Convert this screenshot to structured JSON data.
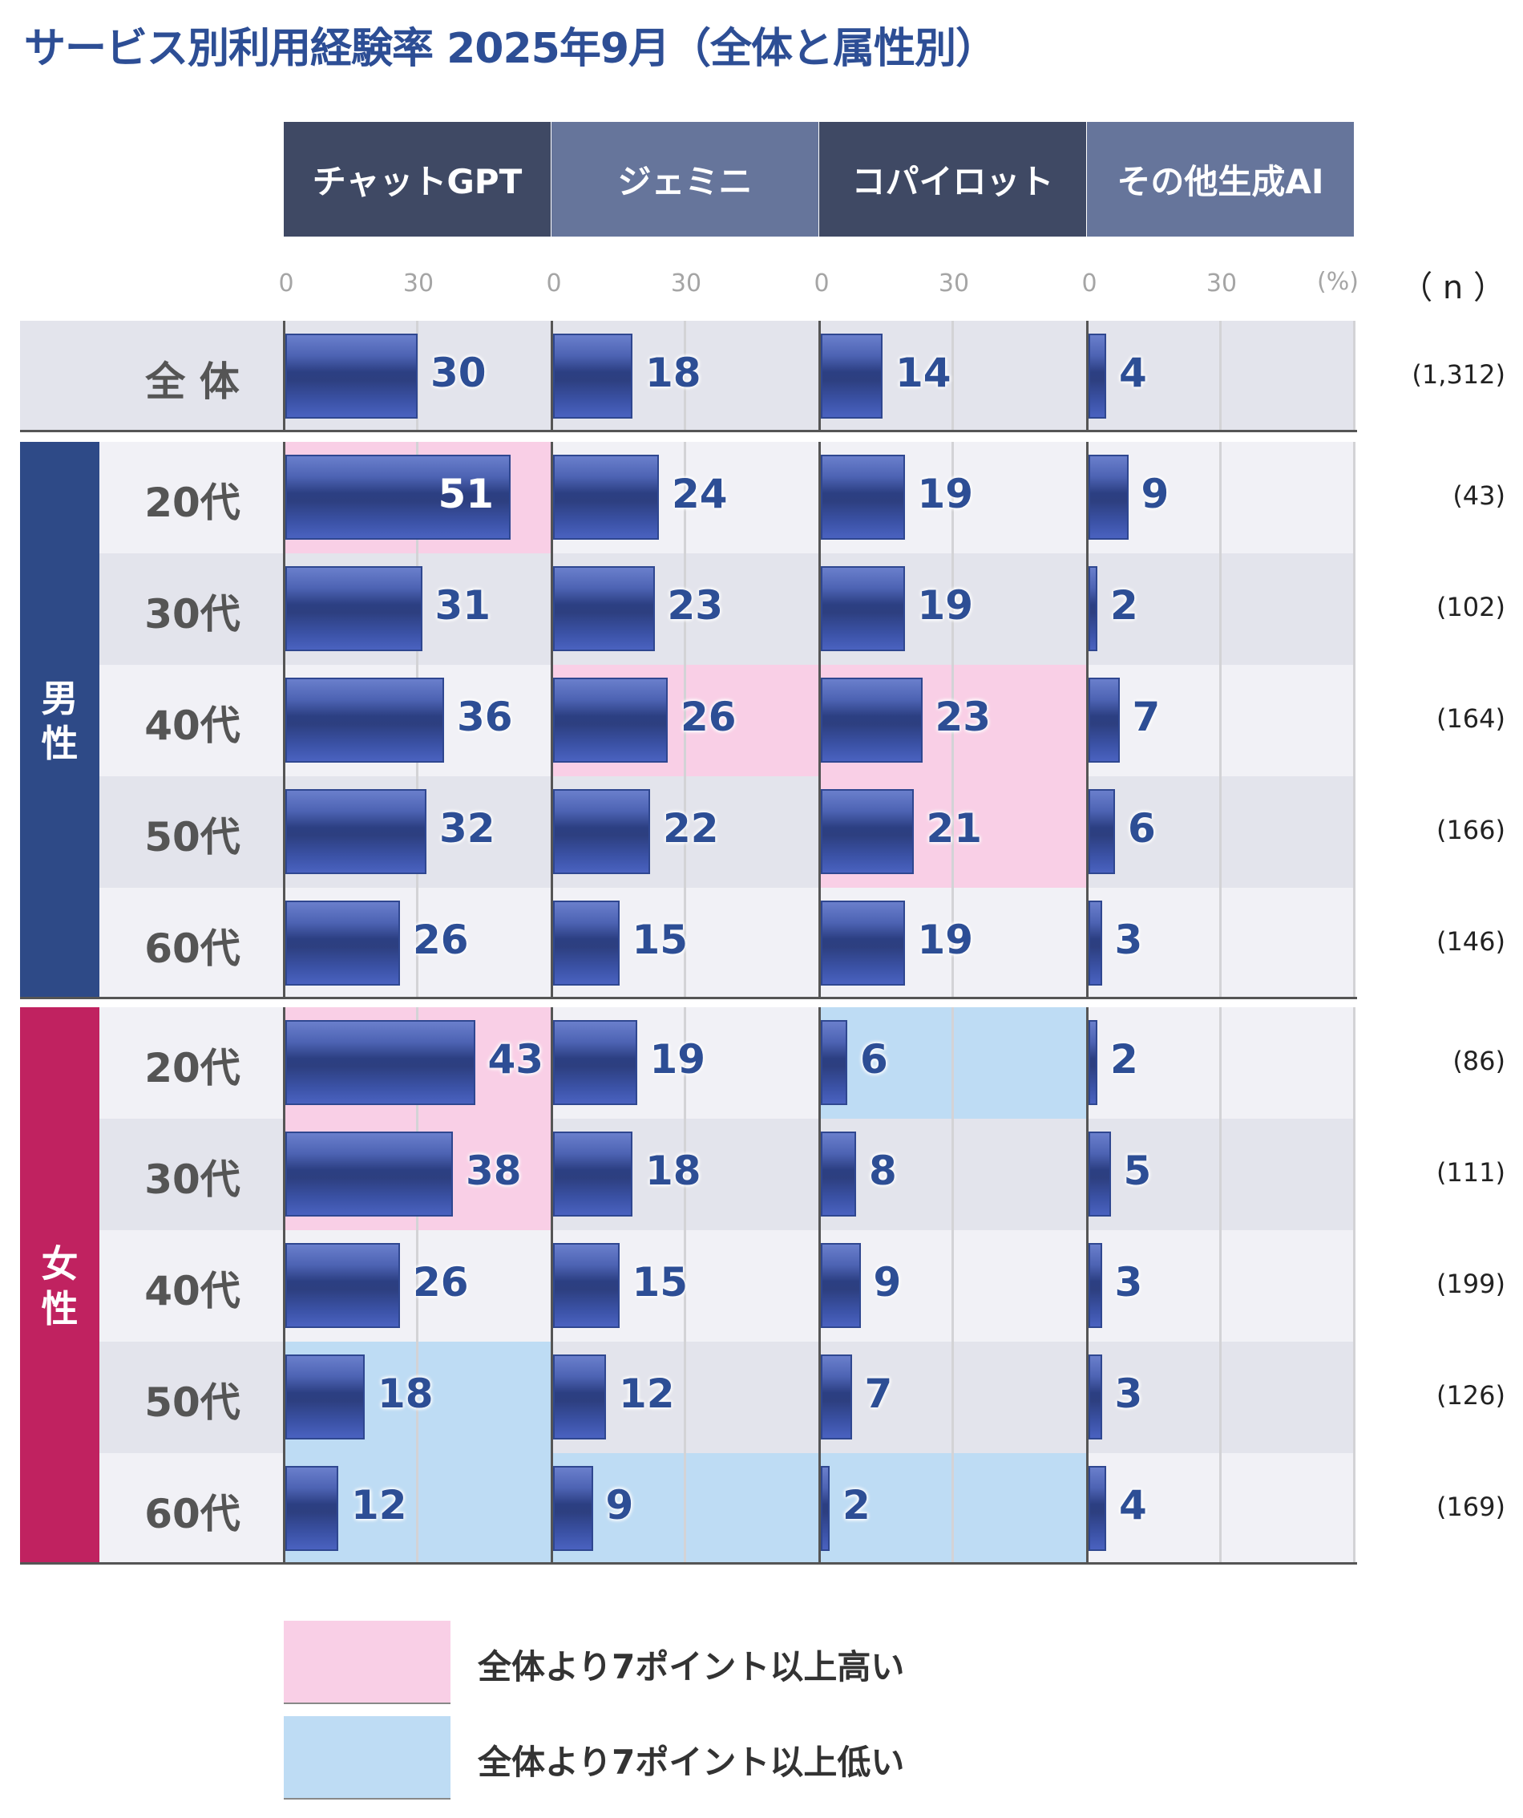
{
  "title": "サービス別利用経験率 2025年9月（全体と属性別）",
  "chart_data": {
    "type": "bar",
    "orientation": "horizontal",
    "title": "サービス別利用経験率 2025年9月（全体と属性別）",
    "unit_label": "(%)",
    "n_label": "（ n ）",
    "xlim": [
      0,
      60
    ],
    "tick_labels": [
      "0",
      "30"
    ],
    "grid": true,
    "services": [
      "チャットGPT",
      "ジェミニ",
      "コパイロット",
      "その他生成AI"
    ],
    "header_colors": [
      "#3f4964",
      "#66759b",
      "#3f4964",
      "#66759b"
    ],
    "overall": {
      "label": "全 体",
      "values": [
        30,
        18,
        14,
        4
      ],
      "n": "(1,312)"
    },
    "groups": [
      {
        "label": "男性",
        "color": "#2e4a87",
        "rows": [
          {
            "label": "20代",
            "values": [
              51,
              24,
              19,
              9
            ],
            "n": "(43)",
            "highlight": [
              "high",
              null,
              null,
              null
            ]
          },
          {
            "label": "30代",
            "values": [
              31,
              23,
              19,
              2
            ],
            "n": "(102)",
            "highlight": [
              null,
              null,
              null,
              null
            ]
          },
          {
            "label": "40代",
            "values": [
              36,
              26,
              23,
              7
            ],
            "n": "(164)",
            "highlight": [
              null,
              "high",
              "high",
              null
            ]
          },
          {
            "label": "50代",
            "values": [
              32,
              22,
              21,
              6
            ],
            "n": "(166)",
            "highlight": [
              null,
              null,
              "high",
              null
            ]
          },
          {
            "label": "60代",
            "values": [
              26,
              15,
              19,
              3
            ],
            "n": "(146)",
            "highlight": [
              null,
              null,
              null,
              null
            ]
          }
        ]
      },
      {
        "label": "女性",
        "color": "#c02260",
        "rows": [
          {
            "label": "20代",
            "values": [
              43,
              19,
              6,
              2
            ],
            "n": "(86)",
            "highlight": [
              "high",
              null,
              "low",
              null
            ]
          },
          {
            "label": "30代",
            "values": [
              38,
              18,
              8,
              5
            ],
            "n": "(111)",
            "highlight": [
              "high",
              null,
              null,
              null
            ]
          },
          {
            "label": "40代",
            "values": [
              26,
              15,
              9,
              3
            ],
            "n": "(199)",
            "highlight": [
              null,
              null,
              null,
              null
            ]
          },
          {
            "label": "50代",
            "values": [
              18,
              12,
              7,
              3
            ],
            "n": "(126)",
            "highlight": [
              "low",
              null,
              null,
              null
            ]
          },
          {
            "label": "60代",
            "values": [
              12,
              9,
              2,
              4
            ],
            "n": "(169)",
            "highlight": [
              "low",
              "low",
              "low",
              null
            ]
          }
        ]
      }
    ],
    "legend": [
      {
        "key": "high",
        "label": "全体より7ポイント以上高い",
        "color": "#f9cfe6"
      },
      {
        "key": "low",
        "label": "全体より7ポイント以上低い",
        "color": "#bedcf4"
      }
    ]
  }
}
